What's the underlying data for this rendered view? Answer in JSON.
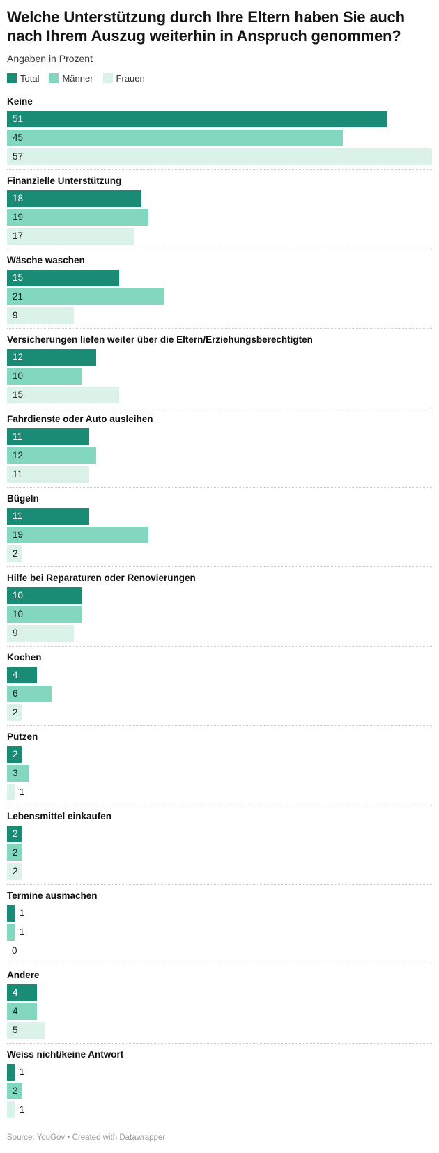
{
  "header": {
    "title": "Welche Unterstützung durch Ihre Eltern haben Sie auch nach Ihrem Auszug weiterhin in Anspruch genommen?",
    "subtitle": "Angaben in Prozent"
  },
  "footer": {
    "source": "Source: YouGov",
    "separator": "•",
    "credit": "Created with Datawrapper"
  },
  "colors": {
    "total": "#1a8c75",
    "maenner": "#84d7bf",
    "frauen": "#dbf2e9",
    "label_on_dark": "#ffffff",
    "label_on_light": "#1f1f1f",
    "separator_line": "#c9c9c9"
  },
  "chart_data": {
    "type": "bar",
    "orientation": "horizontal",
    "title": "Welche Unterstützung durch Ihre Eltern haben Sie auch nach Ihrem Auszug weiterhin in Anspruch genommen?",
    "subtitle": "Angaben in Prozent",
    "unit": "percent",
    "xmax": 57,
    "grid": false,
    "value_labels": true,
    "legend_position": "top",
    "categories": [
      "Keine",
      "Finanzielle Unterstützung",
      "Wäsche waschen",
      "Versicherungen liefen weiter über die Eltern/Erziehungsberechtigten",
      "Fahrdienste oder Auto ausleihen",
      "Bügeln",
      "Hilfe bei Reparaturen oder Renovierungen",
      "Kochen",
      "Putzen",
      "Lebensmittel einkaufen",
      "Termine ausmachen",
      "Andere",
      "Weiss nicht/keine Antwort"
    ],
    "series": [
      {
        "name": "Total",
        "color": "#1a8c75",
        "values": [
          51,
          18,
          15,
          12,
          11,
          11,
          10,
          4,
          2,
          2,
          1,
          4,
          1
        ]
      },
      {
        "name": "Männer",
        "color": "#84d7bf",
        "values": [
          45,
          19,
          21,
          10,
          12,
          19,
          10,
          6,
          3,
          2,
          1,
          4,
          2
        ]
      },
      {
        "name": "Frauen",
        "color": "#dbf2e9",
        "values": [
          57,
          17,
          9,
          15,
          11,
          2,
          9,
          2,
          1,
          2,
          0,
          5,
          1
        ]
      }
    ]
  }
}
